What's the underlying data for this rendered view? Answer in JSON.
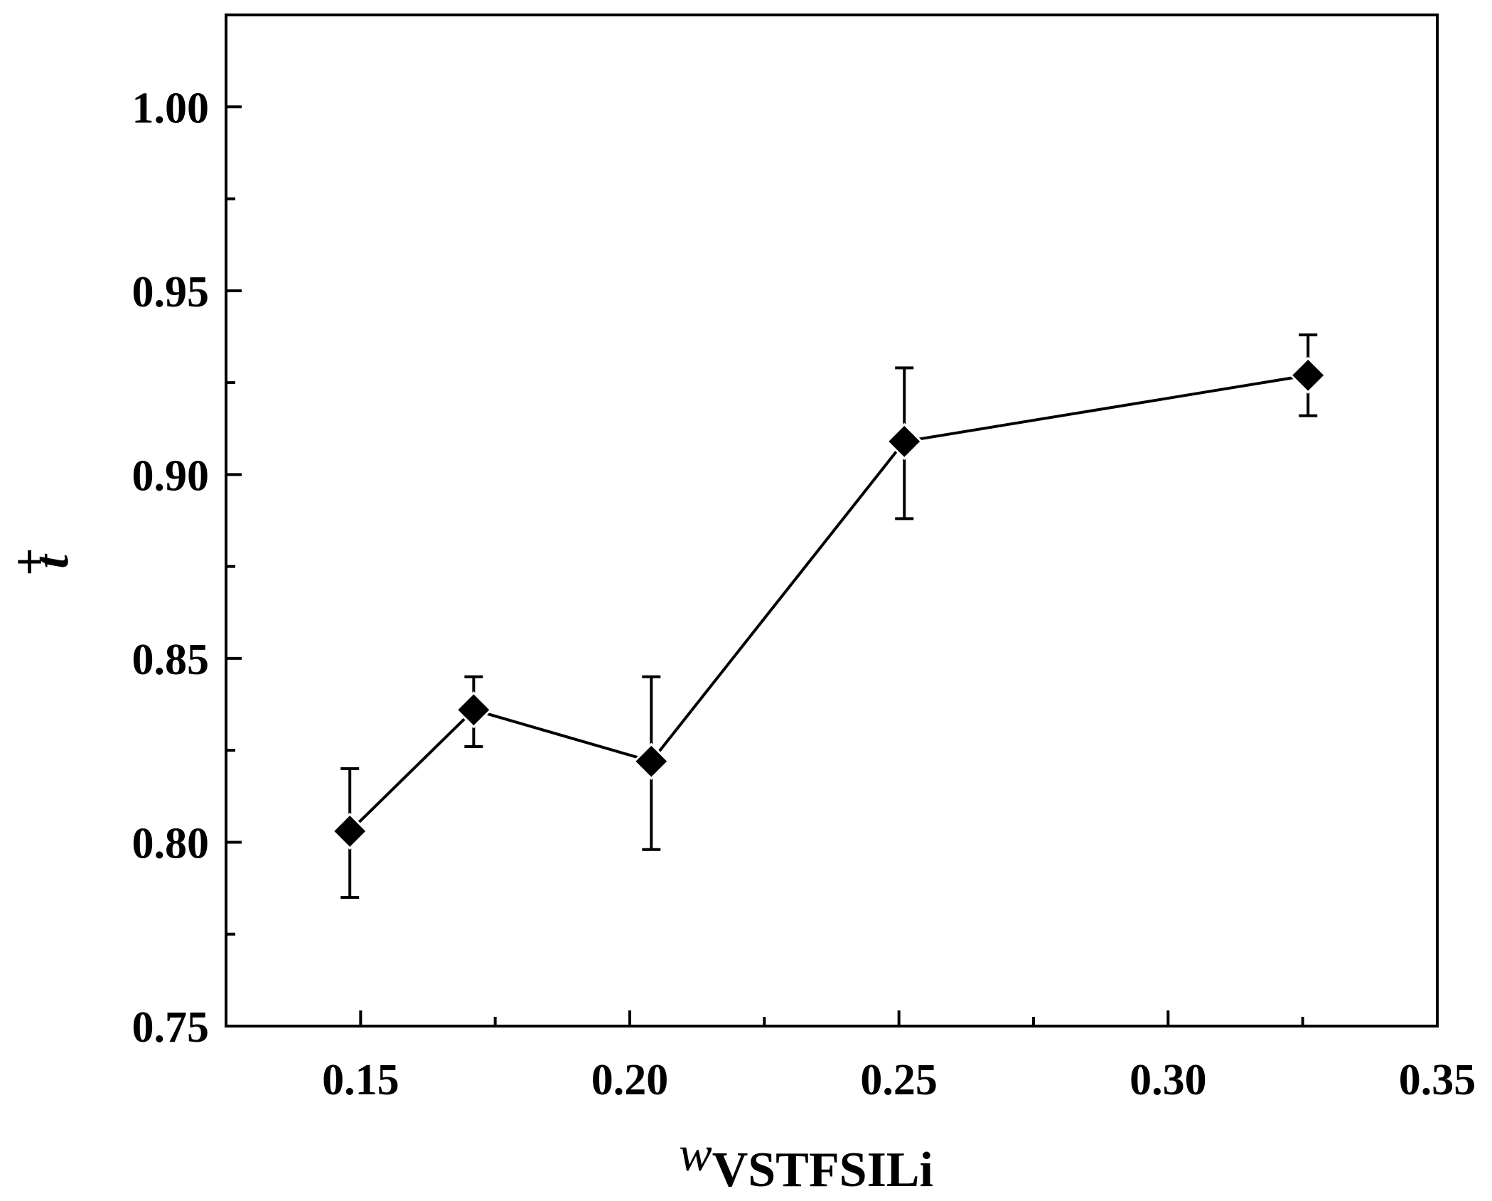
{
  "chart_data": {
    "type": "line",
    "title": "",
    "xlabel": {
      "symbol": "w",
      "subscript": "VSTFSILi"
    },
    "ylabel": {
      "symbol": "t",
      "superscript": "+"
    },
    "xlim": [
      0.125,
      0.35
    ],
    "ylim": [
      0.75,
      1.025
    ],
    "x_ticks_major": [
      0.15,
      0.2,
      0.25,
      0.3,
      0.35
    ],
    "x_tick_labels": [
      "0.15",
      "0.20",
      "0.25",
      "0.30",
      "0.35"
    ],
    "x_ticks_minor": [
      0.175,
      0.225,
      0.275,
      0.325
    ],
    "y_ticks_major": [
      0.75,
      0.8,
      0.85,
      0.9,
      0.95,
      1.0
    ],
    "y_tick_labels": [
      "0.75",
      "0.80",
      "0.85",
      "0.90",
      "0.95",
      "1.00"
    ],
    "y_ticks_minor": [
      0.775,
      0.825,
      0.875,
      0.925,
      0.975
    ],
    "grid": false,
    "series": [
      {
        "name": "t+",
        "marker": "diamond",
        "color": "#000000",
        "x": [
          0.148,
          0.171,
          0.204,
          0.251,
          0.326
        ],
        "y": [
          0.803,
          0.836,
          0.822,
          0.909,
          0.927
        ],
        "err_low": [
          0.785,
          0.826,
          0.798,
          0.888,
          0.916
        ],
        "err_high": [
          0.82,
          0.845,
          0.845,
          0.929,
          0.938
        ]
      }
    ]
  }
}
